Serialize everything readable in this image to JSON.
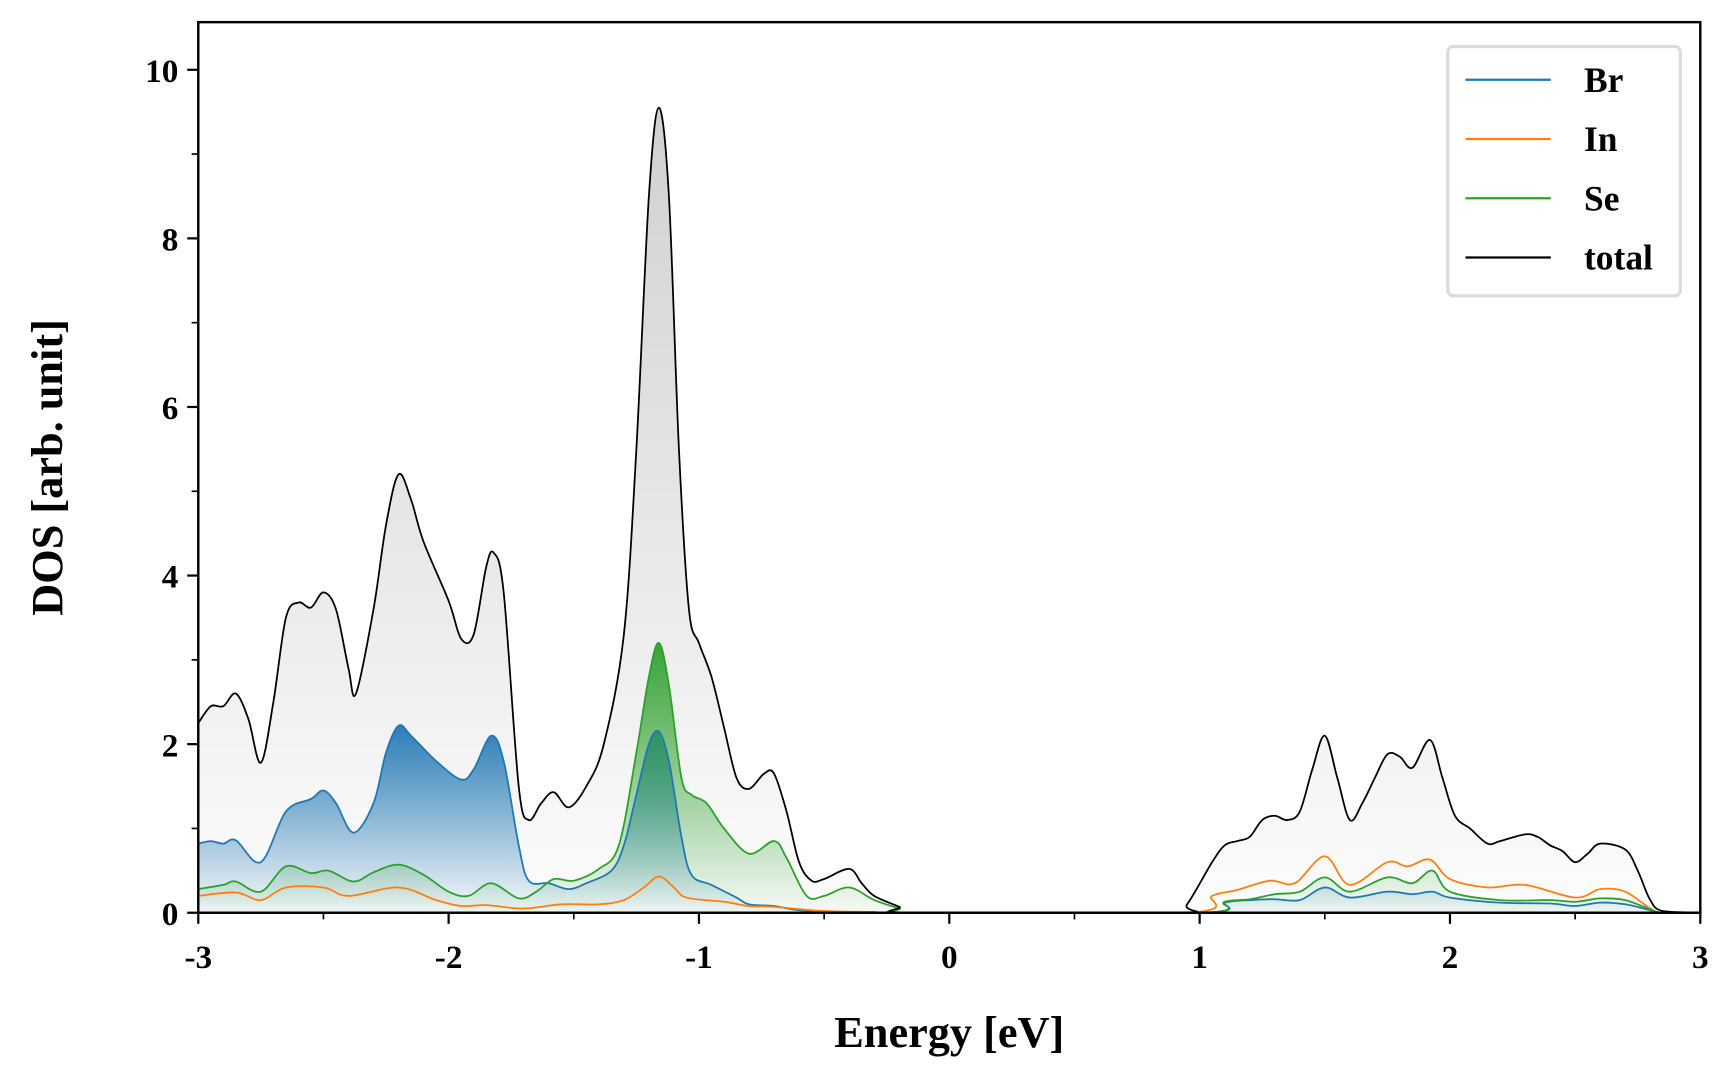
{
  "chart_data": {
    "type": "area",
    "xlabel": "Energy [eV]",
    "ylabel": "DOS [arb. unit]",
    "xlim": [
      -3,
      3
    ],
    "ylim": [
      0,
      10.5
    ],
    "xticks": [
      "-3",
      "-2",
      "-1",
      "0",
      "1",
      "2",
      "3"
    ],
    "yticks": [
      "0",
      "2",
      "4",
      "6",
      "8",
      "10"
    ],
    "grid": false,
    "legend_position": "top-right",
    "series": [
      {
        "name": "Br",
        "color": "#1f77b4",
        "filled": true,
        "points": [
          [
            -3,
            0.82
          ],
          [
            -2.95,
            0.85
          ],
          [
            -2.9,
            0.82
          ],
          [
            -2.85,
            0.86
          ],
          [
            -2.75,
            0.6
          ],
          [
            -2.65,
            1.2
          ],
          [
            -2.55,
            1.35
          ],
          [
            -2.5,
            1.45
          ],
          [
            -2.45,
            1.3
          ],
          [
            -2.38,
            0.95
          ],
          [
            -2.3,
            1.3
          ],
          [
            -2.25,
            1.9
          ],
          [
            -2.2,
            2.22
          ],
          [
            -2.15,
            2.1
          ],
          [
            -2.05,
            1.8
          ],
          [
            -1.95,
            1.58
          ],
          [
            -1.9,
            1.7
          ],
          [
            -1.83,
            2.1
          ],
          [
            -1.78,
            1.8
          ],
          [
            -1.72,
            0.8
          ],
          [
            -1.68,
            0.38
          ],
          [
            -1.6,
            0.35
          ],
          [
            -1.52,
            0.28
          ],
          [
            -1.45,
            0.35
          ],
          [
            -1.35,
            0.5
          ],
          [
            -1.3,
            0.8
          ],
          [
            -1.25,
            1.4
          ],
          [
            -1.2,
            2.0
          ],
          [
            -1.16,
            2.15
          ],
          [
            -1.12,
            1.8
          ],
          [
            -1.07,
            0.9
          ],
          [
            -1.03,
            0.45
          ],
          [
            -0.95,
            0.33
          ],
          [
            -0.85,
            0.18
          ],
          [
            -0.8,
            0.1
          ],
          [
            -0.7,
            0.08
          ],
          [
            -0.6,
            0.03
          ],
          [
            -0.4,
            0.01
          ],
          [
            -0.2,
            0
          ],
          [
            1.0,
            0
          ],
          [
            1.1,
            0.12
          ],
          [
            1.2,
            0.15
          ],
          [
            1.3,
            0.16
          ],
          [
            1.4,
            0.15
          ],
          [
            1.5,
            0.3
          ],
          [
            1.6,
            0.18
          ],
          [
            1.75,
            0.25
          ],
          [
            1.85,
            0.22
          ],
          [
            1.93,
            0.25
          ],
          [
            2.0,
            0.18
          ],
          [
            2.2,
            0.12
          ],
          [
            2.4,
            0.11
          ],
          [
            2.5,
            0.08
          ],
          [
            2.6,
            0.12
          ],
          [
            2.7,
            0.1
          ],
          [
            2.8,
            0.03
          ],
          [
            2.85,
            0
          ],
          [
            3,
            0
          ]
        ]
      },
      {
        "name": "In",
        "color": "#ff7f0e",
        "filled": false,
        "points": [
          [
            -3,
            0.2
          ],
          [
            -2.85,
            0.24
          ],
          [
            -2.75,
            0.15
          ],
          [
            -2.65,
            0.3
          ],
          [
            -2.5,
            0.3
          ],
          [
            -2.4,
            0.2
          ],
          [
            -2.2,
            0.3
          ],
          [
            -2.05,
            0.15
          ],
          [
            -1.95,
            0.08
          ],
          [
            -1.85,
            0.09
          ],
          [
            -1.7,
            0.05
          ],
          [
            -1.55,
            0.1
          ],
          [
            -1.4,
            0.1
          ],
          [
            -1.3,
            0.15
          ],
          [
            -1.22,
            0.3
          ],
          [
            -1.16,
            0.43
          ],
          [
            -1.1,
            0.3
          ],
          [
            -1.05,
            0.18
          ],
          [
            -0.9,
            0.13
          ],
          [
            -0.8,
            0.08
          ],
          [
            -0.7,
            0.07
          ],
          [
            -0.5,
            0.02
          ],
          [
            -0.3,
            0.01
          ],
          [
            -0.2,
            0
          ],
          [
            0.95,
            0
          ],
          [
            1.05,
            0.2
          ],
          [
            1.15,
            0.27
          ],
          [
            1.28,
            0.38
          ],
          [
            1.38,
            0.35
          ],
          [
            1.5,
            0.67
          ],
          [
            1.6,
            0.33
          ],
          [
            1.75,
            0.6
          ],
          [
            1.83,
            0.55
          ],
          [
            1.92,
            0.63
          ],
          [
            2.0,
            0.4
          ],
          [
            2.15,
            0.3
          ],
          [
            2.3,
            0.33
          ],
          [
            2.5,
            0.18
          ],
          [
            2.6,
            0.28
          ],
          [
            2.7,
            0.25
          ],
          [
            2.8,
            0.05
          ],
          [
            2.85,
            0
          ],
          [
            3,
            0
          ]
        ]
      },
      {
        "name": "Se",
        "color": "#2ca02c",
        "filled": true,
        "points": [
          [
            -3,
            0.28
          ],
          [
            -2.9,
            0.33
          ],
          [
            -2.85,
            0.37
          ],
          [
            -2.75,
            0.25
          ],
          [
            -2.65,
            0.55
          ],
          [
            -2.55,
            0.47
          ],
          [
            -2.48,
            0.5
          ],
          [
            -2.38,
            0.37
          ],
          [
            -2.3,
            0.48
          ],
          [
            -2.2,
            0.57
          ],
          [
            -2.1,
            0.45
          ],
          [
            -2.0,
            0.25
          ],
          [
            -1.92,
            0.2
          ],
          [
            -1.83,
            0.35
          ],
          [
            -1.72,
            0.17
          ],
          [
            -1.65,
            0.25
          ],
          [
            -1.58,
            0.4
          ],
          [
            -1.5,
            0.38
          ],
          [
            -1.4,
            0.52
          ],
          [
            -1.32,
            0.8
          ],
          [
            -1.25,
            1.9
          ],
          [
            -1.2,
            2.8
          ],
          [
            -1.16,
            3.2
          ],
          [
            -1.12,
            2.7
          ],
          [
            -1.07,
            1.6
          ],
          [
            -1.03,
            1.4
          ],
          [
            -0.97,
            1.3
          ],
          [
            -0.9,
            1.0
          ],
          [
            -0.8,
            0.7
          ],
          [
            -0.7,
            0.85
          ],
          [
            -0.65,
            0.65
          ],
          [
            -0.57,
            0.2
          ],
          [
            -0.5,
            0.2
          ],
          [
            -0.4,
            0.3
          ],
          [
            -0.3,
            0.15
          ],
          [
            -0.2,
            0.05
          ],
          [
            -0.15,
            0
          ],
          [
            1.0,
            0
          ],
          [
            1.1,
            0.13
          ],
          [
            1.2,
            0.16
          ],
          [
            1.3,
            0.22
          ],
          [
            1.4,
            0.25
          ],
          [
            1.5,
            0.42
          ],
          [
            1.6,
            0.25
          ],
          [
            1.75,
            0.42
          ],
          [
            1.85,
            0.35
          ],
          [
            1.93,
            0.5
          ],
          [
            2.0,
            0.25
          ],
          [
            2.2,
            0.15
          ],
          [
            2.4,
            0.15
          ],
          [
            2.5,
            0.13
          ],
          [
            2.6,
            0.17
          ],
          [
            2.7,
            0.15
          ],
          [
            2.8,
            0.04
          ],
          [
            2.85,
            0
          ],
          [
            3,
            0
          ]
        ]
      },
      {
        "name": "total",
        "color": "#000000",
        "filled": true,
        "points": [
          [
            -3,
            2.25
          ],
          [
            -2.95,
            2.45
          ],
          [
            -2.9,
            2.45
          ],
          [
            -2.85,
            2.6
          ],
          [
            -2.8,
            2.3
          ],
          [
            -2.75,
            1.78
          ],
          [
            -2.7,
            2.5
          ],
          [
            -2.65,
            3.5
          ],
          [
            -2.6,
            3.68
          ],
          [
            -2.55,
            3.62
          ],
          [
            -2.5,
            3.8
          ],
          [
            -2.45,
            3.6
          ],
          [
            -2.4,
            2.9
          ],
          [
            -2.37,
            2.6
          ],
          [
            -2.3,
            3.6
          ],
          [
            -2.25,
            4.6
          ],
          [
            -2.2,
            5.2
          ],
          [
            -2.15,
            4.9
          ],
          [
            -2.1,
            4.4
          ],
          [
            -2.0,
            3.7
          ],
          [
            -1.95,
            3.25
          ],
          [
            -1.9,
            3.3
          ],
          [
            -1.85,
            4.1
          ],
          [
            -1.82,
            4.27
          ],
          [
            -1.78,
            3.8
          ],
          [
            -1.72,
            1.5
          ],
          [
            -1.68,
            1.1
          ],
          [
            -1.63,
            1.3
          ],
          [
            -1.58,
            1.43
          ],
          [
            -1.52,
            1.25
          ],
          [
            -1.45,
            1.5
          ],
          [
            -1.38,
            2.0
          ],
          [
            -1.3,
            3.3
          ],
          [
            -1.25,
            5.5
          ],
          [
            -1.2,
            8.5
          ],
          [
            -1.16,
            9.55
          ],
          [
            -1.12,
            8.5
          ],
          [
            -1.08,
            5.5
          ],
          [
            -1.04,
            3.6
          ],
          [
            -1.0,
            3.2
          ],
          [
            -0.95,
            2.8
          ],
          [
            -0.9,
            2.2
          ],
          [
            -0.85,
            1.6
          ],
          [
            -0.8,
            1.47
          ],
          [
            -0.74,
            1.65
          ],
          [
            -0.7,
            1.65
          ],
          [
            -0.65,
            1.2
          ],
          [
            -0.6,
            0.6
          ],
          [
            -0.55,
            0.38
          ],
          [
            -0.5,
            0.4
          ],
          [
            -0.4,
            0.52
          ],
          [
            -0.35,
            0.35
          ],
          [
            -0.3,
            0.2
          ],
          [
            -0.2,
            0.07
          ],
          [
            -0.15,
            0
          ],
          [
            0.9,
            0
          ],
          [
            0.95,
            0.1
          ],
          [
            1.05,
            0.6
          ],
          [
            1.1,
            0.8
          ],
          [
            1.15,
            0.85
          ],
          [
            1.2,
            0.9
          ],
          [
            1.25,
            1.1
          ],
          [
            1.3,
            1.15
          ],
          [
            1.35,
            1.1
          ],
          [
            1.4,
            1.2
          ],
          [
            1.45,
            1.7
          ],
          [
            1.5,
            2.1
          ],
          [
            1.55,
            1.6
          ],
          [
            1.6,
            1.1
          ],
          [
            1.65,
            1.3
          ],
          [
            1.7,
            1.6
          ],
          [
            1.75,
            1.88
          ],
          [
            1.8,
            1.85
          ],
          [
            1.85,
            1.72
          ],
          [
            1.92,
            2.05
          ],
          [
            1.97,
            1.6
          ],
          [
            2.02,
            1.15
          ],
          [
            2.08,
            1.0
          ],
          [
            2.15,
            0.82
          ],
          [
            2.2,
            0.85
          ],
          [
            2.3,
            0.93
          ],
          [
            2.35,
            0.9
          ],
          [
            2.4,
            0.8
          ],
          [
            2.45,
            0.73
          ],
          [
            2.5,
            0.6
          ],
          [
            2.55,
            0.7
          ],
          [
            2.6,
            0.82
          ],
          [
            2.7,
            0.75
          ],
          [
            2.75,
            0.5
          ],
          [
            2.8,
            0.15
          ],
          [
            2.85,
            0.02
          ],
          [
            3,
            0
          ]
        ]
      }
    ]
  }
}
